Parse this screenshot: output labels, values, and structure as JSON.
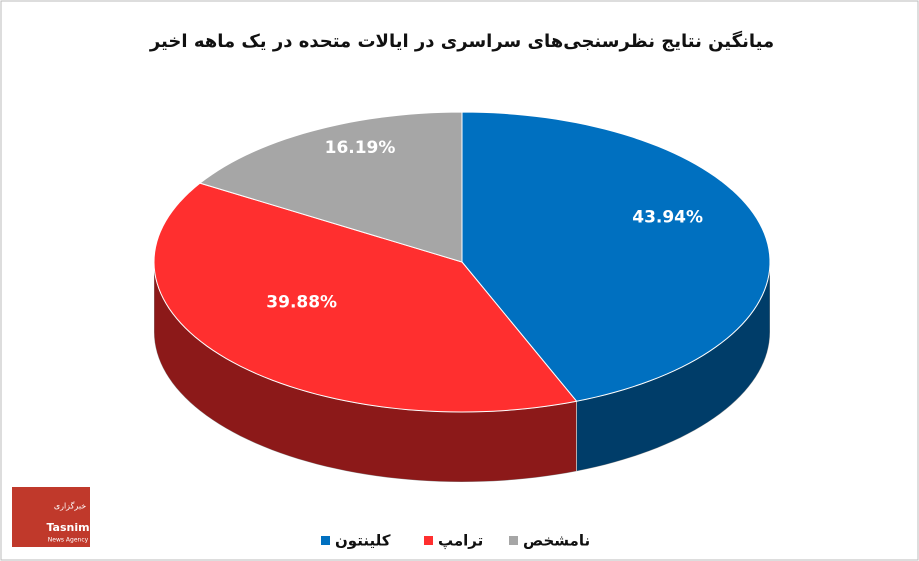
{
  "chart_data": {
    "type": "pie3d",
    "title": "میانگین نتایج نظرسنجی‌های سراسری در ایالات متحده در یک ماهه اخیر",
    "categories": [
      "کلینتون",
      "ترامپ",
      "نامشخص"
    ],
    "values": [
      43.94,
      39.88,
      16.19
    ],
    "value_labels": [
      "43.94%",
      "39.88%",
      "16.19%"
    ],
    "colors": [
      "#0070c0",
      "#ff2f2f",
      "#a6a6a6"
    ],
    "legend": "bottom"
  },
  "logo": {
    "name": "Tasnim",
    "tagline": "News Agency",
    "label_fa": "خبرگزاری"
  }
}
